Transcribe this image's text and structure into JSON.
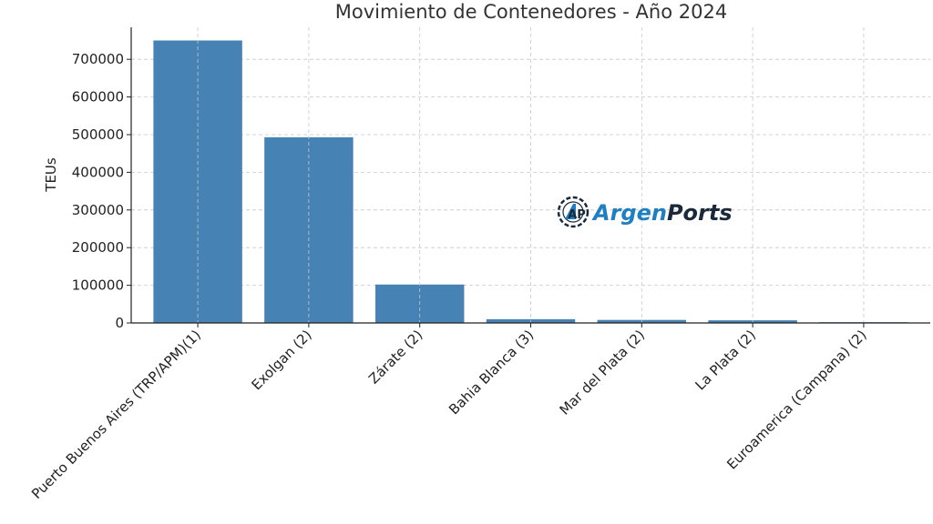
{
  "chart_data": {
    "type": "bar",
    "title": "Movimiento de Contenedores - Año 2024",
    "xlabel": "",
    "ylabel": "TEUs",
    "categories": [
      "Puerto Buenos Aires (TRP/APM)(1)",
      "Exolgan (2)",
      "Zárate (2)",
      "Bahia Blanca (3)",
      "Mar del Plata (2)",
      "La Plata  (2)",
      "Euroamerica (Campana) (2)"
    ],
    "values": [
      750000,
      493000,
      102000,
      10000,
      8000,
      7000,
      2000
    ],
    "ylim": [
      0,
      785000
    ],
    "yticks": [
      0,
      100000,
      200000,
      300000,
      400000,
      500000,
      600000,
      700000
    ],
    "grid": true,
    "bar_color": "#4682b4"
  },
  "watermark": {
    "logo_mark": "AP",
    "brand_part1": "Argen",
    "brand_part2": "Ports",
    "color1": "#1f7fc1",
    "color2": "#1b2a3a"
  }
}
